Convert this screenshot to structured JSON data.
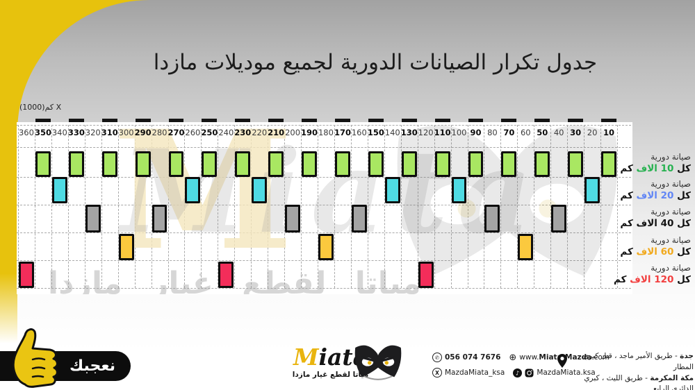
{
  "title": "جدول تكرار الصيانات الدورية لجميع موديلات مازدا",
  "chart_data": {
    "type": "table",
    "title": "جدول تكرار الصيانات الدورية لجميع موديلات مازدا",
    "x_label": "كم(1000) X",
    "x_unit": "x1000 km",
    "categories": [
      360,
      350,
      340,
      330,
      320,
      310,
      300,
      290,
      280,
      270,
      260,
      250,
      240,
      230,
      220,
      210,
      200,
      190,
      180,
      170,
      160,
      150,
      140,
      130,
      120,
      110,
      100,
      90,
      80,
      70,
      60,
      50,
      40,
      30,
      20,
      10
    ],
    "series": [
      {
        "name": "صيانة دورية كل 10 الاف كم",
        "interval": 10,
        "color": "#a9e762",
        "marked_at": [
          350,
          330,
          310,
          290,
          270,
          250,
          230,
          210,
          190,
          170,
          150,
          130,
          110,
          90,
          70,
          50,
          30,
          10
        ]
      },
      {
        "name": "صيانة دورية كل 20 الاف كم",
        "interval": 20,
        "color": "#4fdbe3",
        "marked_at": [
          340,
          260,
          220,
          140,
          100,
          20
        ]
      },
      {
        "name": "صيانة دورية كل 40 الاف كم",
        "interval": 40,
        "color": "#a4a4a4",
        "marked_at": [
          320,
          280,
          200,
          160,
          80,
          40
        ]
      },
      {
        "name": "صيانة دورية كل 60 الاف كم",
        "interval": 60,
        "color": "#fbc93e",
        "marked_at": [
          300,
          180,
          60
        ]
      },
      {
        "name": "صيانة دورية كل 120 الاف كم",
        "interval": 120,
        "color": "#f32d5a",
        "marked_at": [
          360,
          240,
          120
        ]
      }
    ]
  },
  "legend": {
    "items": [
      {
        "title": "صيانة دورية",
        "pre": "كل ",
        "value": "10 الاف",
        "post": " كم",
        "color": "#27b150"
      },
      {
        "title": "صيانة دورية",
        "pre": "كل ",
        "value": "20 الاف",
        "post": " كم",
        "color": "#6286f5"
      },
      {
        "title": "صيانة دورية",
        "pre": "كل ",
        "value": "40 الاف",
        "post": " كم",
        "color": "#141414"
      },
      {
        "title": "صيانة دورية",
        "pre": "كل ",
        "value": "60 الاف",
        "post": " كم",
        "color": "#f1a91d"
      },
      {
        "title": "صيانة دورية",
        "pre": "كل ",
        "value": "120 الاف",
        "post": " كم",
        "color": "#f23f3f"
      }
    ]
  },
  "watermark": {
    "initial": "M",
    "latin": "Miata",
    "arabic": "مياتا لقطع غيار مازدا"
  },
  "footer": {
    "logo": {
      "initial": "M",
      "rest": "iata",
      "tagline": "مياتا لقطع غيار مازدا"
    },
    "phone": "056 074 7676",
    "website": {
      "pre": "www.",
      "bold": "Miata-Mazda",
      "post": ".com"
    },
    "x_handle": "MazdaMiata_ksa",
    "social_handle": "MazdaMiata.ksa",
    "addresses": [
      {
        "city": "جدة",
        "text": "- طريق الأمير ماجد ، قبل كبري المطار"
      },
      {
        "city": "مكة المكرمة",
        "text": "- طريق الليث ، كبري الدائري الرابع"
      }
    ],
    "ribbon_label": "نعجبك"
  },
  "colors": {
    "accent_yellow": "#e7c20d",
    "block_green": "#a9e762",
    "block_cyan": "#4fdbe3",
    "block_gray": "#a4a4a4",
    "block_yellow": "#fbc93e",
    "block_red": "#f32d5a"
  }
}
